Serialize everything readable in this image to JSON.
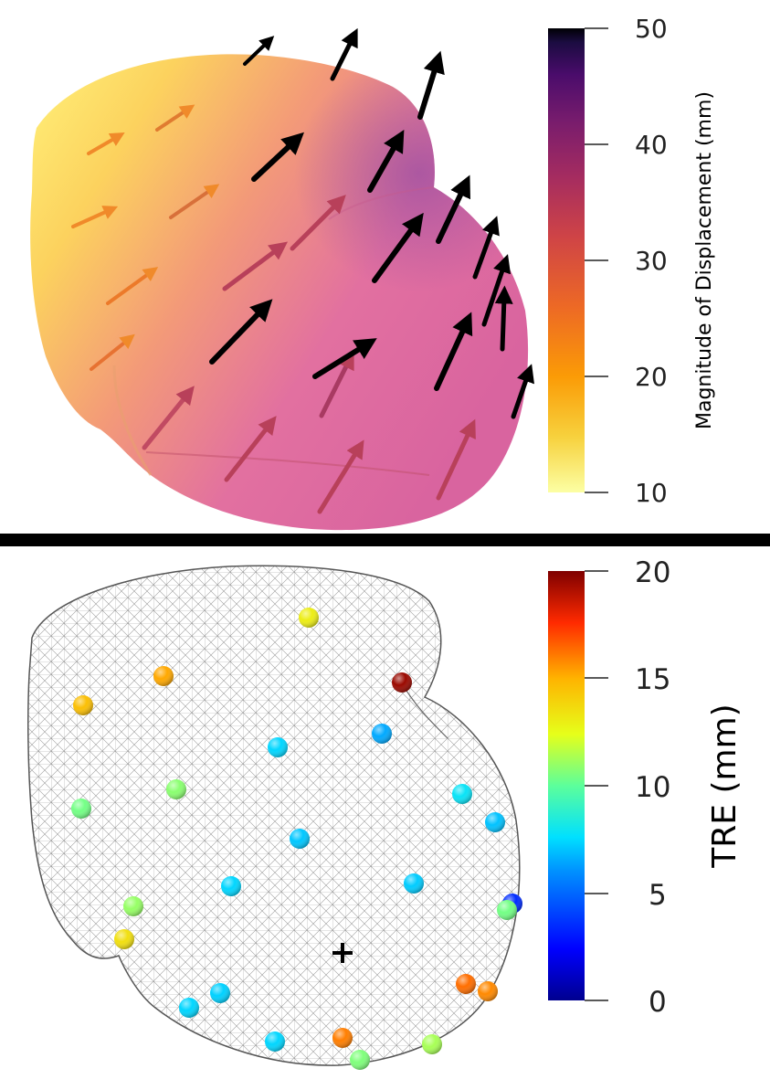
{
  "top_panel": {
    "colorbar": {
      "title": "Magnitude of Displacement (mm)",
      "ticks": [
        "50",
        "40",
        "30",
        "20",
        "10"
      ],
      "min": 10,
      "max": 50,
      "colormap": [
        "#000004",
        "#320a5e",
        "#781c6d",
        "#bc3754",
        "#ed6925",
        "#fbb61a",
        "#fcffa4"
      ]
    },
    "surface_colors": {
      "low": "#fce36a",
      "mid": "#f29c76",
      "high": "#df6aa4",
      "highest": "#b5559c"
    }
  },
  "bottom_panel": {
    "colorbar": {
      "title": "TRE (mm)",
      "ticks": [
        "20",
        "15",
        "10",
        "5",
        "0"
      ],
      "min": 0,
      "max": 20,
      "colormap": [
        "#7f0000",
        "#ff2a00",
        "#ffb300",
        "#d6ff00",
        "#5cff9b",
        "#00d4ff",
        "#0050ff",
        "#00008f"
      ]
    },
    "markers": [
      {
        "tre": 13.0
      },
      {
        "tre": 15.2
      },
      {
        "tre": 14.6
      },
      {
        "tre": 19.5
      },
      {
        "tre": 6.5
      },
      {
        "tre": 7.4
      },
      {
        "tre": 10.8
      },
      {
        "tre": 10.4
      },
      {
        "tre": 7.8
      },
      {
        "tre": 7.0
      },
      {
        "tre": 7.1
      },
      {
        "tre": 7.4
      },
      {
        "tre": 7.2
      },
      {
        "tre": 3.5
      },
      {
        "tre": 10.4
      },
      {
        "tre": 11.0
      },
      {
        "tre": 13.5
      },
      {
        "tre": 7.3
      },
      {
        "tre": 7.4
      },
      {
        "tre": 16.3
      },
      {
        "tre": 15.8
      },
      {
        "tre": 7.4
      },
      {
        "tre": 16.0
      },
      {
        "tre": 11.3
      },
      {
        "tre": 10.6
      }
    ]
  }
}
